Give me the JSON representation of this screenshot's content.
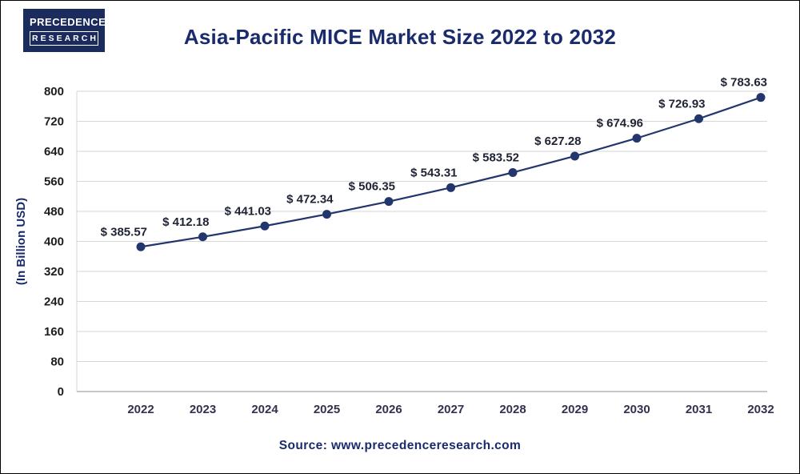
{
  "logo": {
    "line1": "PRECEDENCE",
    "line2": "RESEARCH"
  },
  "header": {
    "title": "Asia-Pacific MICE Market Size 2022 to 2032"
  },
  "footer": {
    "source": "Source: www.precedenceresearch.com"
  },
  "colors": {
    "brand_navy": "#1a2b6d",
    "line": "#23356d",
    "grid": "#d6d6d6",
    "baseline": "#8f8f8f",
    "label": "#1f2333"
  },
  "chart_data": {
    "type": "line",
    "title": "Asia-Pacific MICE Market Size 2022 to 2032",
    "x": [
      "2022",
      "2023",
      "2024",
      "2025",
      "2026",
      "2027",
      "2028",
      "2029",
      "2030",
      "2031",
      "2032"
    ],
    "values": [
      385.57,
      412.18,
      441.03,
      472.34,
      506.35,
      543.31,
      583.52,
      627.28,
      674.96,
      726.93,
      783.63
    ],
    "label_prefix": "$ ",
    "ylabel": "(In Billion USD)",
    "xlabel": "",
    "ylim": [
      0,
      800
    ],
    "ytick_step": 80,
    "grid": true,
    "legend": false,
    "marker": "circle"
  }
}
